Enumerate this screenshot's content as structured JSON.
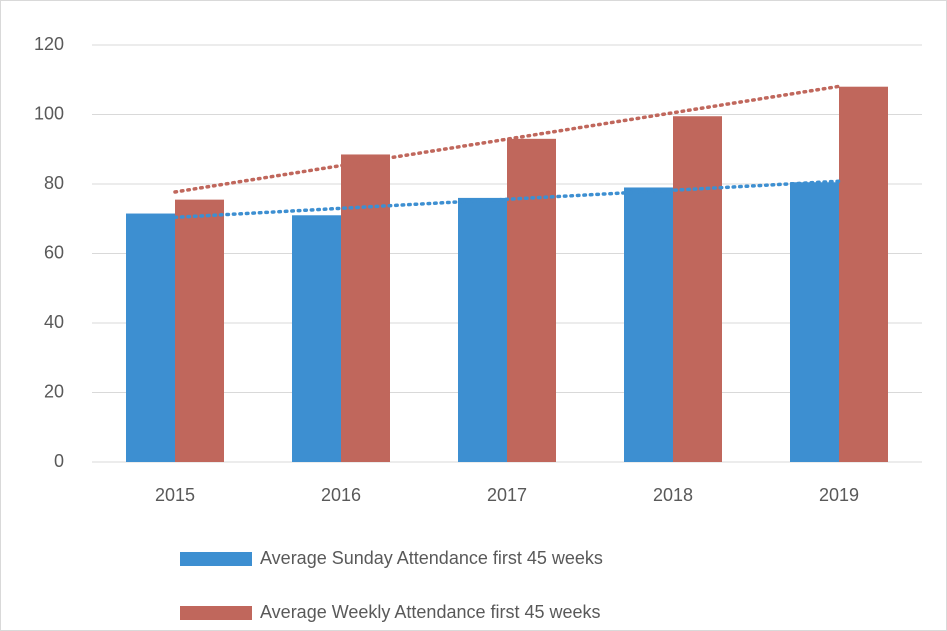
{
  "chart_data": {
    "type": "bar",
    "categories": [
      "2015",
      "2016",
      "2017",
      "2018",
      "2019"
    ],
    "series": [
      {
        "name": "Average Sunday Attendance first 45 weeks",
        "color": "#3d8fd1",
        "values": [
          71.5,
          71,
          76,
          79,
          80.5
        ]
      },
      {
        "name": "Average Weekly Attendance first 45 weeks",
        "color": "#c0675c",
        "values": [
          75.5,
          88.5,
          93,
          99.5,
          108
        ]
      }
    ],
    "ylim": [
      0,
      120
    ],
    "yticks": [
      0,
      20,
      40,
      60,
      80,
      100,
      120
    ],
    "grid": true,
    "trendline": true,
    "legend": "bottom"
  }
}
